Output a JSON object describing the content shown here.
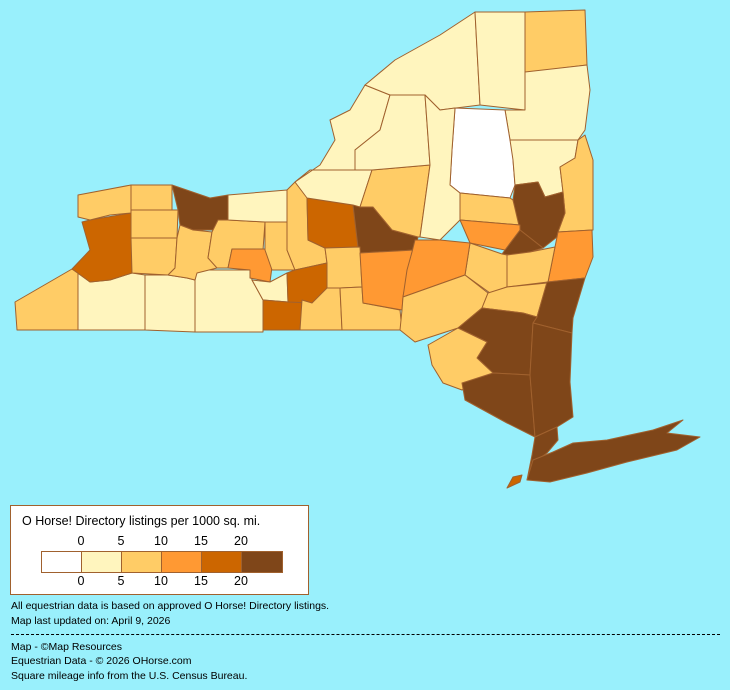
{
  "map": {
    "region": "New York",
    "border_color": "#A0612E",
    "background_color": "#99F0FC",
    "counties": [
      {
        "bin": 1
      },
      {
        "bin": 1
      },
      {
        "bin": 1
      }
    ]
  },
  "legend": {
    "title": "O Horse! Directory listings per 1000 sq. mi.",
    "top_ticks": [
      "0",
      "5",
      "10",
      "15",
      "20"
    ],
    "bottom_ticks": [
      "0",
      "5",
      "10",
      "15",
      "20"
    ],
    "bins": [
      {
        "range": "0",
        "color": "#FFFFFF"
      },
      {
        "range": "0-5",
        "color": "#FFF5BE"
      },
      {
        "range": "5-10",
        "color": "#FFCC66"
      },
      {
        "range": "10-15",
        "color": "#FF9933"
      },
      {
        "range": "15-20",
        "color": "#CC6600"
      },
      {
        "range": "20+",
        "color": "#7F4619"
      }
    ]
  },
  "notes": {
    "basis": "All equestrian data is based on approved O Horse! Directory listings.",
    "updated": "Map last updated on: April 9, 2026"
  },
  "credits": {
    "map": "Map - ©Map Resources",
    "data": "Equestrian Data - © 2026 OHorse.com",
    "census": "Square mileage info from the U.S. Census Bureau."
  }
}
